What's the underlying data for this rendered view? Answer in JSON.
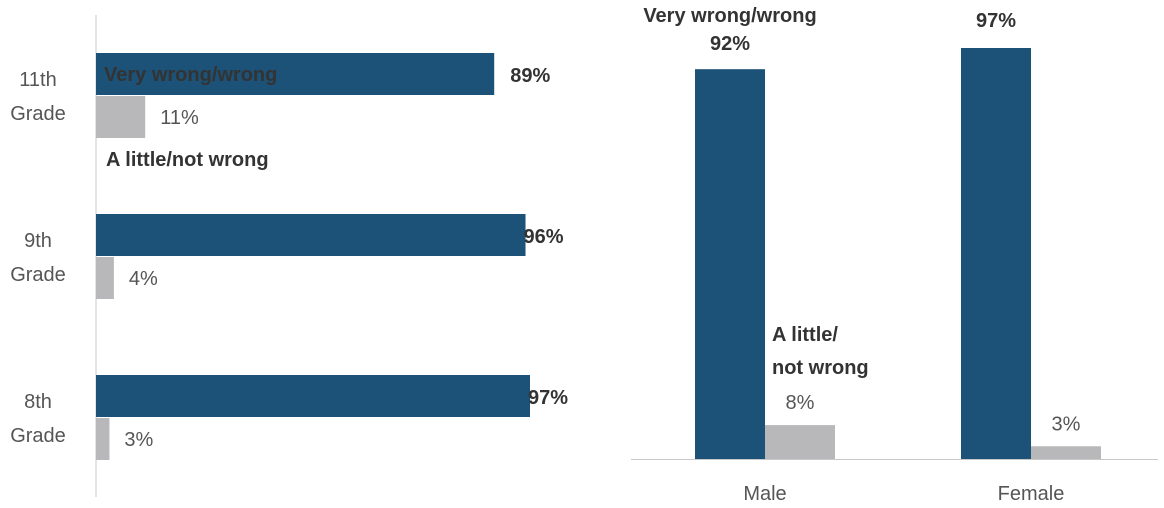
{
  "colors": {
    "primary": "#1c5278",
    "secondary": "#b8b8bb",
    "axis": "#c8c8c8",
    "text": "#555555",
    "bold_text": "#333333"
  },
  "chart_data": [
    {
      "type": "bar",
      "orientation": "horizontal",
      "categories": [
        {
          "line1": "11th",
          "line2": "Grade"
        },
        {
          "line1": "9th",
          "line2": "Grade"
        },
        {
          "line1": "8th",
          "line2": "Grade"
        }
      ],
      "series": [
        {
          "name": "Very wrong/wrong",
          "values": [
            89,
            96,
            97
          ],
          "labels": [
            "89%",
            "96%",
            "97%"
          ]
        },
        {
          "name": "A little/not wrong",
          "values": [
            11,
            4,
            3
          ],
          "labels": [
            "11%",
            "4%",
            "3%"
          ]
        }
      ],
      "xlim": [
        0,
        100
      ],
      "grid": false
    },
    {
      "type": "bar",
      "orientation": "vertical",
      "categories": [
        "Male",
        "Female"
      ],
      "series": [
        {
          "name": "Very wrong/wrong",
          "values": [
            92,
            97
          ],
          "labels": [
            "92%",
            "97%"
          ]
        },
        {
          "name_line1": "A little/",
          "name_line2": "not wrong",
          "values": [
            8,
            3
          ],
          "labels": [
            "8%",
            "3%"
          ]
        }
      ],
      "ylim": [
        0,
        100
      ],
      "grid": false
    }
  ]
}
